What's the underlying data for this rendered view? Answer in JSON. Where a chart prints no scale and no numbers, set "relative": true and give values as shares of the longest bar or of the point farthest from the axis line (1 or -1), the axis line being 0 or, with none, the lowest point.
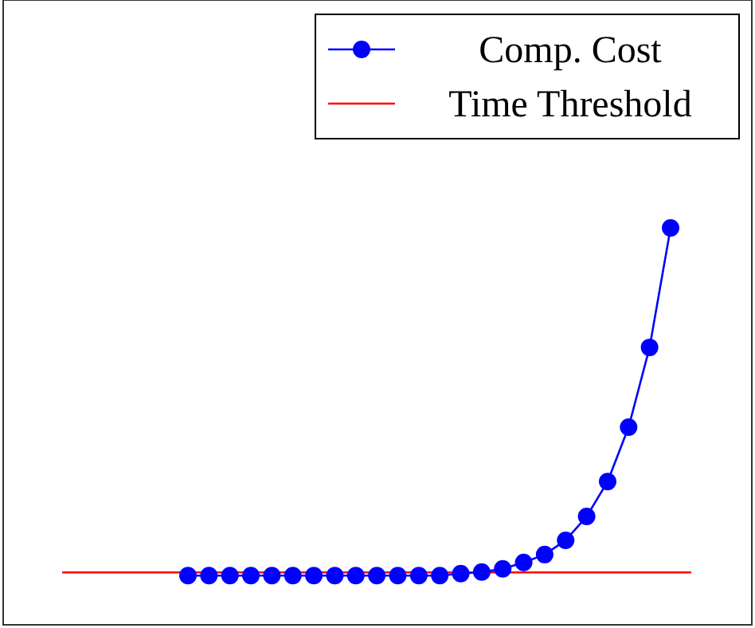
{
  "chart_data": {
    "type": "line",
    "relative": true,
    "categories": [
      null,
      null,
      null,
      null,
      null,
      null,
      null,
      null,
      null,
      null,
      null,
      null,
      null,
      null,
      null,
      null,
      null,
      null,
      null,
      null,
      null,
      null,
      null,
      null
    ],
    "series": [
      {
        "name": "Comp. Cost",
        "color": "#0000ff",
        "values": [
          0.124,
          0.124,
          0.124,
          0.124,
          0.124,
          0.124,
          0.124,
          0.124,
          0.124,
          0.124,
          0.124,
          0.124,
          0.124,
          0.129,
          0.133,
          0.141,
          0.157,
          0.177,
          0.213,
          0.273,
          0.361,
          0.498,
          0.699,
          1
        ]
      }
    ],
    "ref_lines": [
      {
        "axis": "y",
        "value": 0.132,
        "label": "Time Threshold",
        "color": "#ff0000"
      }
    ],
    "marker": "circle",
    "legend": "top right"
  }
}
